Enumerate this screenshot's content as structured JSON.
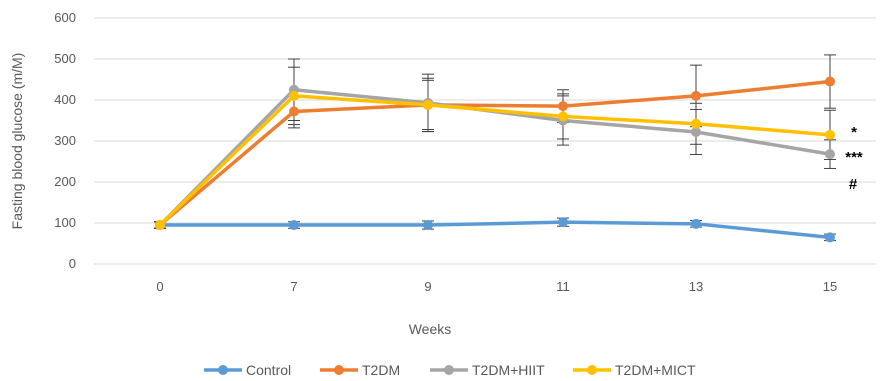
{
  "chart_data": {
    "type": "line",
    "x": [
      "0",
      "7",
      "9",
      "11",
      "13",
      "15"
    ],
    "xlabel": "Weeks",
    "ylabel": "Fasting blood glucose (m/M)",
    "ylim": [
      0,
      600
    ],
    "yticks": [
      "0",
      "100",
      "200",
      "300",
      "400",
      "500",
      "600"
    ],
    "grid": "horizontal",
    "legend_position": "bottom",
    "series": [
      {
        "name": "Control",
        "color": "#5B9BD5",
        "values": [
          95,
          95,
          95,
          102,
          98,
          65
        ],
        "errors": [
          8,
          8,
          10,
          10,
          8,
          8
        ]
      },
      {
        "name": "T2DM",
        "color": "#ED7D31",
        "values": [
          95,
          372,
          388,
          385,
          410,
          445
        ],
        "errors": [
          8,
          40,
          60,
          40,
          75,
          65
        ]
      },
      {
        "name": "T2DM+HIIT",
        "color": "#A5A5A5",
        "values": [
          95,
          425,
          393,
          350,
          322,
          268
        ],
        "errors": [
          8,
          75,
          70,
          60,
          55,
          35
        ]
      },
      {
        "name": "T2DM+MICT",
        "color": "#FFC000",
        "values": [
          95,
          410,
          388,
          360,
          342,
          315
        ],
        "errors": [
          8,
          70,
          65,
          55,
          50,
          60
        ]
      }
    ],
    "annotations": [
      "*",
      "***",
      "#"
    ]
  }
}
